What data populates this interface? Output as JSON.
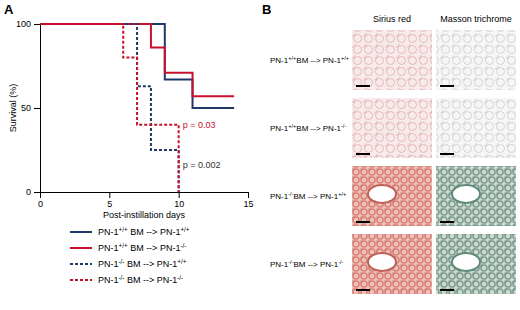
{
  "panel_labels": [
    "A",
    "B"
  ],
  "chart_data": {
    "type": "line",
    "xlabel": "Post-instillation days",
    "ylabel": "Survival (%)",
    "xlim": [
      0,
      15
    ],
    "xticks": [
      0,
      5,
      10,
      15
    ],
    "ylim": [
      0,
      100
    ],
    "yticks": [
      0,
      50,
      100
    ],
    "grid": false,
    "series": [
      {
        "name": "PN-1+/+ BM --> PN-1+/+",
        "color": "#1f3a68",
        "line_style": "solid",
        "x": [
          0,
          9,
          11,
          14
        ],
        "values": [
          100,
          67,
          50,
          50
        ]
      },
      {
        "name": "PN-1+/+ BM --> PN-1-/-",
        "color": "#c8102e",
        "line_style": "solid",
        "x": [
          0,
          8,
          9,
          11,
          14
        ],
        "values": [
          100,
          86,
          71,
          57,
          57
        ]
      },
      {
        "name": "PN-1-/- BM --> PN-1+/+",
        "color": "#1f3a68",
        "line_style": "dashed",
        "x": [
          0,
          7,
          8,
          10
        ],
        "values": [
          100,
          63,
          25,
          0
        ]
      },
      {
        "name": "PN-1-/- BM --> PN-1-/-",
        "color": "#c8102e",
        "line_style": "dashed",
        "x": [
          0,
          6,
          7,
          10
        ],
        "values": [
          100,
          80,
          40,
          0
        ]
      }
    ],
    "annotations": [
      {
        "text": "p = 0.03",
        "color": "#c8102e"
      },
      {
        "text": "p = 0.002",
        "color": "#333333"
      }
    ]
  },
  "histology": {
    "columns": [
      "Sirius red",
      "Masson trichrome"
    ],
    "rows": [
      "PN-1+/+BM --> PN-1+/+",
      "PN-1+/+BM --> PN-1-/-",
      "PN-1-/-BM --> PN-1+/+",
      "PN-1-/-BM --> PN-1-/-"
    ]
  }
}
